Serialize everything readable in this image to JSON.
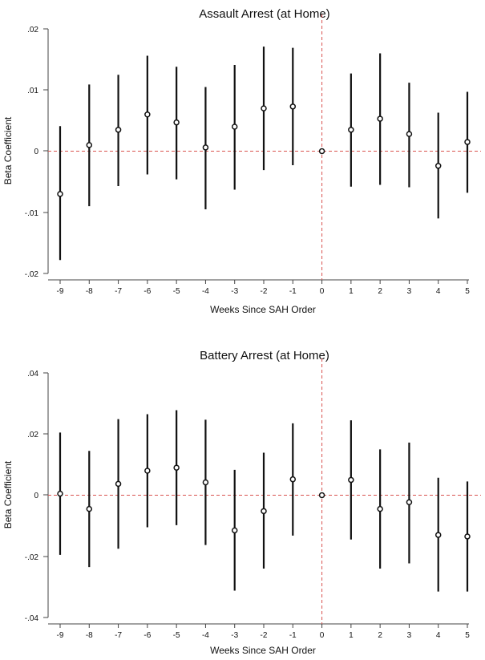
{
  "colors": {
    "bar": "#111111",
    "axis": "#444444",
    "reference_line": "#d9534f",
    "point_fill": "#ffffff"
  },
  "chart_data": [
    {
      "type": "scatter",
      "title": "Assault Arrest (at Home)",
      "xlabel": "Weeks Since SAH Order",
      "ylabel": "Beta Coefficient",
      "x": [
        -9,
        -8,
        -7,
        -6,
        -5,
        -4,
        -3,
        -2,
        -1,
        0,
        1,
        2,
        3,
        4,
        5
      ],
      "y": [
        -0.007,
        0.001,
        0.0035,
        0.006,
        0.0047,
        0.0006,
        0.004,
        0.007,
        0.0073,
        0,
        0.0035,
        0.0053,
        0.0028,
        -0.0024,
        0.0015
      ],
      "ci_low": [
        -0.0178,
        -0.009,
        -0.0057,
        -0.0038,
        -0.0046,
        -0.0095,
        -0.0063,
        -0.0031,
        -0.0023,
        0,
        -0.0058,
        -0.0055,
        -0.0059,
        -0.011,
        -0.0068
      ],
      "ci_high": [
        0.0041,
        0.0109,
        0.0125,
        0.0156,
        0.0138,
        0.0105,
        0.0141,
        0.0171,
        0.0169,
        0,
        0.0127,
        0.016,
        0.0112,
        0.0063,
        0.0097
      ],
      "ylim": [
        -0.02,
        0.02
      ],
      "yticks": [
        -0.02,
        -0.01,
        0,
        0.01,
        0.02
      ],
      "ytick_labels": [
        "-.02",
        "-.01",
        "0",
        ".01",
        ".02"
      ],
      "xtick_labels": [
        "-9",
        "-8",
        "-7",
        "-6",
        "-5",
        "-4",
        "-3",
        "-2",
        "-1",
        "0",
        "1",
        "2",
        "3",
        "4",
        "5"
      ],
      "reference_lines": {
        "x": 0,
        "y": 0
      }
    },
    {
      "type": "scatter",
      "title": "Battery Arrest (at Home)",
      "xlabel": "Weeks Since SAH Order",
      "ylabel": "Beta Coefficient",
      "x": [
        -9,
        -8,
        -7,
        -6,
        -5,
        -4,
        -3,
        -2,
        -1,
        0,
        1,
        2,
        3,
        4,
        5
      ],
      "y": [
        0.0005,
        -0.0045,
        0.0037,
        0.008,
        0.009,
        0.0042,
        -0.0115,
        -0.0052,
        0.0052,
        0,
        0.005,
        -0.0045,
        -0.0023,
        -0.013,
        -0.0135
      ],
      "ci_low": [
        -0.0195,
        -0.0235,
        -0.0175,
        -0.0105,
        -0.0098,
        -0.0163,
        -0.0312,
        -0.024,
        -0.0132,
        0,
        -0.0145,
        -0.024,
        -0.0223,
        -0.0315,
        -0.0315
      ],
      "ci_high": [
        0.0205,
        0.0145,
        0.0249,
        0.0265,
        0.0278,
        0.0247,
        0.0083,
        0.0139,
        0.0235,
        0,
        0.0245,
        0.015,
        0.0172,
        0.0057,
        0.0045
      ],
      "ylim": [
        -0.04,
        0.04
      ],
      "yticks": [
        -0.04,
        -0.02,
        0,
        0.02,
        0.04
      ],
      "ytick_labels": [
        "-.04",
        "-.02",
        "0",
        ".02",
        ".04"
      ],
      "xtick_labels": [
        "-9",
        "-8",
        "-7",
        "-6",
        "-5",
        "-4",
        "-3",
        "-2",
        "-1",
        "0",
        "1",
        "2",
        "3",
        "4",
        "5"
      ],
      "reference_lines": {
        "x": 0,
        "y": 0
      }
    }
  ]
}
